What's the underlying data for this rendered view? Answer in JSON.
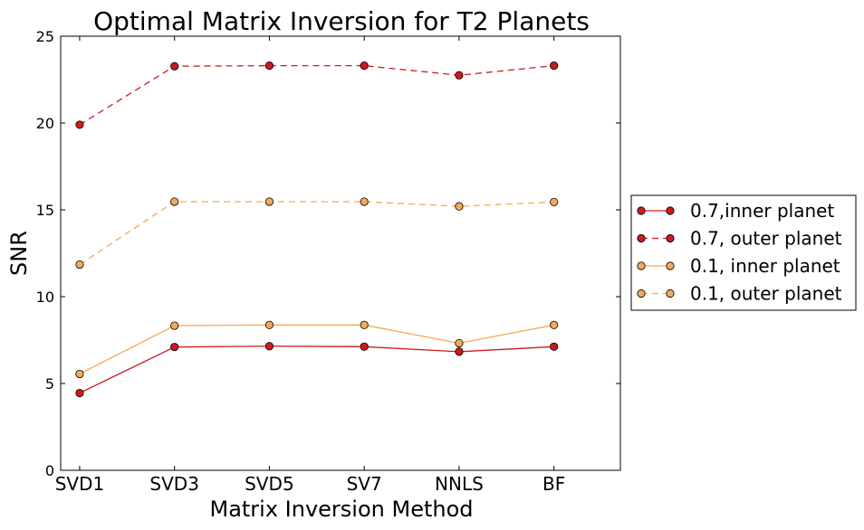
{
  "chart_data": {
    "type": "line",
    "title": "Optimal Matrix Inversion for T2 Planets",
    "xlabel": "Matrix Inversion Method",
    "ylabel": "SNR",
    "categories": [
      "SVD1",
      "SVD3",
      "SVD5",
      "SV7",
      "NNLS",
      "BF"
    ],
    "xlim": [
      -0.2,
      5.7
    ],
    "ylim": [
      0,
      25
    ],
    "yticks": [
      0,
      5,
      10,
      15,
      20,
      25
    ],
    "legend_position": "center-right",
    "series": [
      {
        "name": "0.7,inner planet",
        "color": "#cc1a1f",
        "style": "solid",
        "values": [
          4.45,
          7.1,
          7.15,
          7.12,
          6.83,
          7.12
        ]
      },
      {
        "name": "0.7, outer planet",
        "color": "#cc1a1f",
        "style": "dashed",
        "values": [
          19.9,
          23.27,
          23.3,
          23.3,
          22.75,
          23.3
        ]
      },
      {
        "name": "0.1, inner planet",
        "color": "#f5a85a",
        "style": "solid",
        "values": [
          5.55,
          8.33,
          8.37,
          8.37,
          7.32,
          8.37
        ]
      },
      {
        "name": "0.1, outer planet",
        "color": "#f5a85a",
        "style": "dashed",
        "values": [
          11.85,
          15.47,
          15.47,
          15.47,
          15.2,
          15.45
        ]
      }
    ]
  }
}
